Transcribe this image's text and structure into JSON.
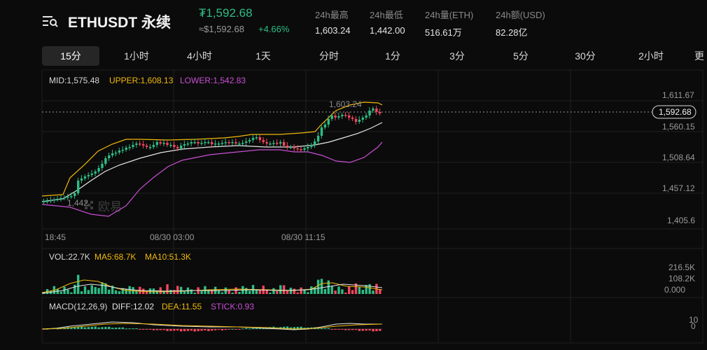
{
  "header": {
    "symbol": "ETHUSDT 永续",
    "last_price": "₮1,592.68",
    "usd_price": "≈$1,592.68",
    "change_pct": "+4.66%",
    "stats": [
      {
        "label": "24h最高",
        "value": "1,603.24"
      },
      {
        "label": "24h最低",
        "value": "1,442.00"
      },
      {
        "label": "24h量(ETH)",
        "value": "516.61万"
      },
      {
        "label": "24h额(USD)",
        "value": "82.28亿"
      }
    ]
  },
  "tabs": [
    "15分",
    "1小时",
    "4小时",
    "1天",
    "分时",
    "1分",
    "3分",
    "5分",
    "30分",
    "2小时",
    "更"
  ],
  "active_tab": "15分",
  "colors": {
    "up": "#2ebd85",
    "down": "#f6465d",
    "mid": "#e6e6e6",
    "upper": "#f0b90b",
    "lower": "#c94fd6",
    "ma5": "#f0b90b",
    "ma10": "#ffffff",
    "stick": "#c94fd6"
  },
  "main_chart": {
    "indicators": {
      "mid": "MID:1,575.48",
      "upper": "UPPER:1,608.13",
      "lower": "LOWER:1,542.83"
    },
    "price_axis": [
      "1,611.67",
      "1,560.15",
      "1,508.64",
      "1,457.12",
      "1,405.6"
    ],
    "current_price_label": "1,592.68",
    "high_marker": "1,603.24",
    "low_marker": "1,442",
    "watermark": "欧易",
    "time_axis": [
      "18:45",
      "08/30 03:00",
      "08/30 11:15"
    ]
  },
  "volume_panel": {
    "vol": "VOL:22.7K",
    "ma5": "MA5:68.7K",
    "ma10": "MA10:51.3K",
    "axis": [
      "216.5K",
      "108.2K",
      "0.000"
    ]
  },
  "macd_panel": {
    "title": "MACD(12,26,9)",
    "diff": "DIFF:12.02",
    "dea": "DEA:11.55",
    "stick": "STICK:0.93",
    "axis": [
      "10",
      "0"
    ]
  }
}
